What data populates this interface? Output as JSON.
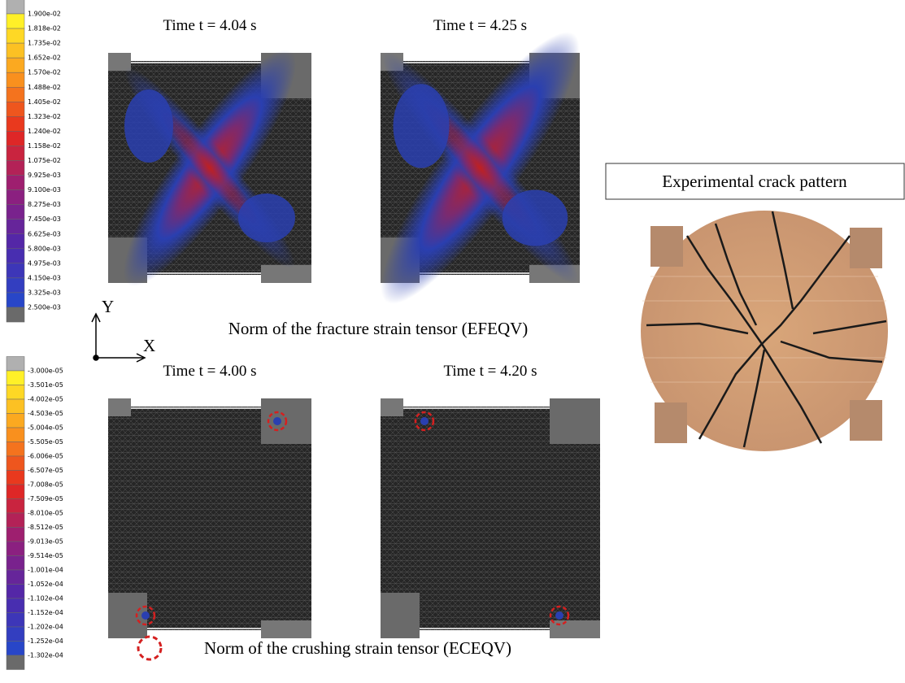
{
  "fracture_legend": [
    "1.900e-02",
    "1.818e-02",
    "1.735e-02",
    "1.652e-02",
    "1.570e-02",
    "1.488e-02",
    "1.405e-02",
    "1.323e-02",
    "1.240e-02",
    "1.158e-02",
    "1.075e-02",
    "9.925e-03",
    "9.100e-03",
    "8.275e-03",
    "7.450e-03",
    "6.625e-03",
    "5.800e-03",
    "4.975e-03",
    "4.150e-03",
    "3.325e-03",
    "2.500e-03"
  ],
  "crushing_legend": [
    "-3.000e-05",
    "-3.501e-05",
    "-4.002e-05",
    "-4.503e-05",
    "-5.004e-05",
    "-5.505e-05",
    "-6.006e-05",
    "-6.507e-05",
    "-7.008e-05",
    "-7.509e-05",
    "-8.010e-05",
    "-8.512e-05",
    "-9.013e-05",
    "-9.514e-05",
    "-1.001e-04",
    "-1.052e-04",
    "-1.102e-04",
    "-1.152e-04",
    "-1.202e-04",
    "-1.252e-04",
    "-1.302e-04"
  ],
  "panels": [
    {
      "title": "Time t = 4.04 s"
    },
    {
      "title": "Time t = 4.25 s"
    },
    {
      "title": "Time t = 4.00 s"
    },
    {
      "title": "Time t = 4.20 s"
    }
  ],
  "axes": {
    "y": "Y",
    "x": "X"
  },
  "captions": {
    "fracture": "Norm of the fracture strain tensor (EFEQV)",
    "crushing": "Norm of the crushing strain tensor (ECEQV)"
  },
  "photo_label": "Experimental crack pattern"
}
